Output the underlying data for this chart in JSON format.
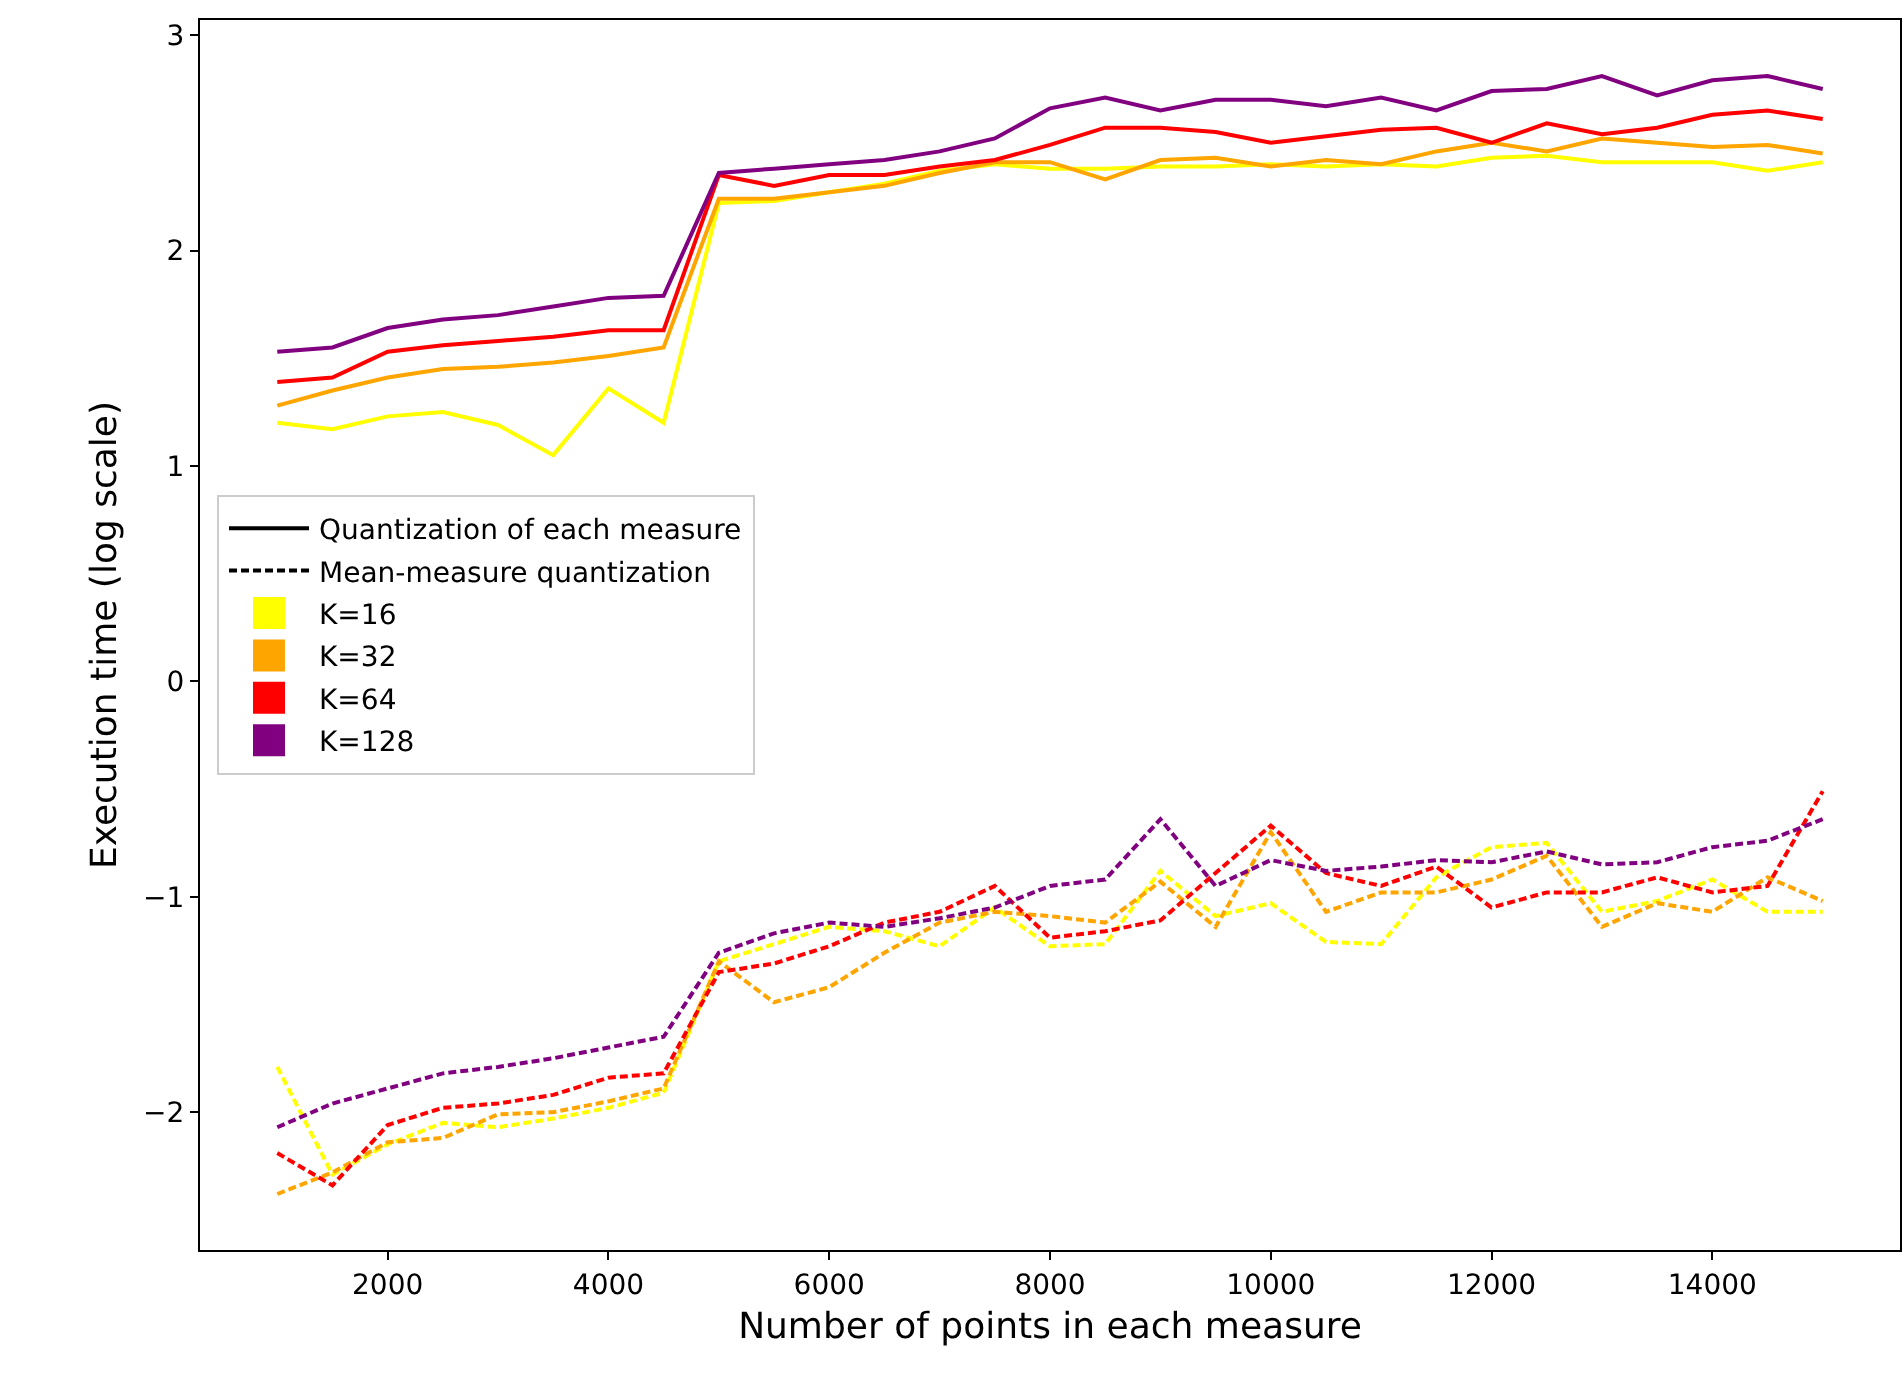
{
  "chart_data": {
    "type": "line",
    "xlabel": "Number of points in each measure",
    "ylabel": "Execution time (log scale)",
    "x": [
      1000,
      1500,
      2000,
      2500,
      3000,
      3500,
      4000,
      4500,
      5000,
      5500,
      6000,
      6500,
      7000,
      7500,
      8000,
      8500,
      9000,
      9500,
      10000,
      10500,
      11000,
      11500,
      12000,
      12500,
      13000,
      13500,
      14000,
      14500,
      15000
    ],
    "xlim": [
      300,
      15700
    ],
    "xticks": [
      2000,
      4000,
      6000,
      8000,
      10000,
      12000,
      14000
    ],
    "ylim": [
      -2.64,
      3.07
    ],
    "yticks": [
      -2,
      -1,
      0,
      1,
      2,
      3
    ],
    "legend": "center left",
    "marker": "none",
    "annotations": [
      "Quantization of each measure",
      "Mean-measure quantization"
    ],
    "series": [
      {
        "name": "K=16",
        "color": "#ffff00",
        "line_style": "solid",
        "values": [
          1.2,
          1.17,
          1.23,
          1.25,
          1.19,
          1.05,
          1.36,
          1.2,
          2.22,
          2.23,
          2.27,
          2.31,
          2.37,
          2.4,
          2.38,
          2.38,
          2.39,
          2.39,
          2.4,
          2.39,
          2.4,
          2.39,
          2.43,
          2.44,
          2.41,
          2.41,
          2.41,
          2.37,
          2.41
        ]
      },
      {
        "name": "K=32",
        "color": "#ffa500",
        "line_style": "solid",
        "values": [
          1.28,
          1.35,
          1.41,
          1.45,
          1.46,
          1.48,
          1.51,
          1.55,
          2.24,
          2.24,
          2.27,
          2.3,
          2.36,
          2.41,
          2.41,
          2.33,
          2.42,
          2.43,
          2.39,
          2.42,
          2.4,
          2.46,
          2.5,
          2.46,
          2.52,
          2.5,
          2.48,
          2.49,
          2.45
        ]
      },
      {
        "name": "K=64",
        "color": "#ff0000",
        "line_style": "solid",
        "values": [
          1.39,
          1.41,
          1.53,
          1.56,
          1.58,
          1.6,
          1.63,
          1.63,
          2.35,
          2.3,
          2.35,
          2.35,
          2.39,
          2.42,
          2.49,
          2.57,
          2.57,
          2.55,
          2.5,
          2.53,
          2.56,
          2.57,
          2.5,
          2.59,
          2.54,
          2.57,
          2.63,
          2.65,
          2.61
        ]
      },
      {
        "name": "K=128",
        "color": "#800080",
        "line_style": "solid",
        "values": [
          1.53,
          1.55,
          1.64,
          1.68,
          1.7,
          1.74,
          1.78,
          1.79,
          2.36,
          2.38,
          2.4,
          2.42,
          2.46,
          2.52,
          2.66,
          2.71,
          2.65,
          2.7,
          2.7,
          2.67,
          2.71,
          2.65,
          2.74,
          2.75,
          2.81,
          2.72,
          2.79,
          2.81,
          2.75
        ]
      },
      {
        "color": "#ffff00",
        "line_style": "dashed",
        "values": [
          -1.79,
          -2.29,
          -2.15,
          -2.05,
          -2.07,
          -2.03,
          -1.98,
          -1.91,
          -1.3,
          -1.22,
          -1.14,
          -1.16,
          -1.23,
          -1.05,
          -1.23,
          -1.22,
          -0.88,
          -1.09,
          -1.03,
          -1.21,
          -1.22,
          -0.91,
          -0.77,
          -0.75,
          -1.07,
          -1.02,
          -0.92,
          -1.07,
          -1.07
        ]
      },
      {
        "color": "#ffa500",
        "line_style": "dashed",
        "values": [
          -2.38,
          -2.28,
          -2.14,
          -2.12,
          -2.01,
          -2.0,
          -1.95,
          -1.89,
          -1.3,
          -1.49,
          -1.42,
          -1.26,
          -1.12,
          -1.07,
          -1.09,
          -1.12,
          -0.93,
          -1.14,
          -0.7,
          -1.07,
          -0.98,
          -0.98,
          -0.92,
          -0.81,
          -1.14,
          -1.03,
          -1.07,
          -0.91,
          -1.02
        ]
      },
      {
        "color": "#ff0000",
        "line_style": "dashed",
        "values": [
          -2.19,
          -2.34,
          -2.06,
          -1.98,
          -1.96,
          -1.92,
          -1.84,
          -1.82,
          -1.35,
          -1.31,
          -1.23,
          -1.12,
          -1.07,
          -0.95,
          -1.19,
          -1.16,
          -1.11,
          -0.89,
          -0.67,
          -0.89,
          -0.95,
          -0.86,
          -1.05,
          -0.98,
          -0.98,
          -0.91,
          -0.98,
          -0.95,
          -0.51
        ]
      },
      {
        "color": "#800080",
        "line_style": "dashed",
        "values": [
          -2.07,
          -1.96,
          -1.89,
          -1.82,
          -1.79,
          -1.75,
          -1.7,
          -1.65,
          -1.26,
          -1.17,
          -1.12,
          -1.14,
          -1.1,
          -1.05,
          -0.95,
          -0.92,
          -0.64,
          -0.95,
          -0.83,
          -0.88,
          -0.86,
          -0.83,
          -0.84,
          -0.79,
          -0.85,
          -0.84,
          -0.77,
          -0.74,
          -0.64
        ]
      }
    ]
  }
}
